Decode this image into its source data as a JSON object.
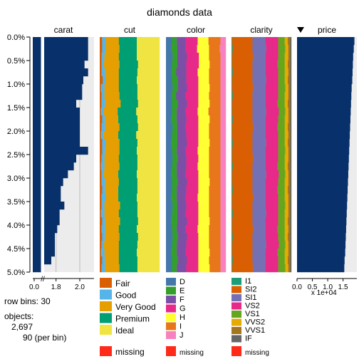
{
  "chart_data": {
    "type": "tableplot",
    "title": "diamonds data",
    "row_bins": 30,
    "objects": 2697,
    "objects_display": "2,697",
    "per_bin": 90,
    "sort_column": "price",
    "y_axis": {
      "ticks": [
        "0.0%",
        "0.5%",
        "1.0%",
        "1.5%",
        "2.0%",
        "2.5%",
        "3.0%",
        "3.5%",
        "4.0%",
        "4.5%",
        "5.0%"
      ],
      "range": [
        0,
        5
      ]
    },
    "columns": [
      {
        "name": "carat",
        "type": "numeric_broken_axis",
        "axis_ticks": [
          "0.0",
          "1.8",
          "2.0"
        ],
        "values": [
          2.07,
          2.07,
          2.07,
          2.04,
          2.07,
          2.03,
          2.02,
          2.02,
          1.97,
          2.0,
          2.0,
          2.0,
          2.0,
          2.0,
          2.07,
          1.97,
          1.95,
          1.9,
          1.86,
          1.84,
          1.84,
          1.87,
          1.83,
          1.83,
          1.81,
          1.79,
          1.79,
          1.79,
          1.76,
          1.7
        ],
        "bar_color": "#08306B"
      },
      {
        "name": "cut",
        "type": "categorical",
        "categories": [
          "Fair",
          "Good",
          "Very Good",
          "Premium",
          "Ideal"
        ],
        "colors": [
          "#D95F02",
          "#56B4E9",
          "#E69F00",
          "#009E73",
          "#F0E442"
        ],
        "proportions": [
          [
            0.04,
            0.06,
            0.22,
            0.3,
            0.38
          ],
          [
            0.04,
            0.06,
            0.23,
            0.29,
            0.38
          ],
          [
            0.03,
            0.05,
            0.24,
            0.3,
            0.38
          ],
          [
            0.03,
            0.04,
            0.26,
            0.31,
            0.36
          ],
          [
            0.03,
            0.06,
            0.23,
            0.31,
            0.37
          ],
          [
            0.05,
            0.05,
            0.22,
            0.3,
            0.38
          ],
          [
            0.02,
            0.06,
            0.24,
            0.31,
            0.37
          ],
          [
            0.03,
            0.05,
            0.25,
            0.3,
            0.37
          ],
          [
            0.03,
            0.06,
            0.26,
            0.29,
            0.36
          ],
          [
            0.02,
            0.05,
            0.23,
            0.31,
            0.39
          ],
          [
            0.04,
            0.05,
            0.22,
            0.32,
            0.37
          ],
          [
            0.03,
            0.06,
            0.24,
            0.31,
            0.36
          ],
          [
            0.02,
            0.04,
            0.25,
            0.3,
            0.39
          ],
          [
            0.04,
            0.06,
            0.23,
            0.3,
            0.37
          ],
          [
            0.04,
            0.05,
            0.24,
            0.29,
            0.38
          ],
          [
            0.03,
            0.05,
            0.24,
            0.31,
            0.37
          ],
          [
            0.02,
            0.06,
            0.25,
            0.3,
            0.37
          ],
          [
            0.03,
            0.04,
            0.24,
            0.31,
            0.38
          ],
          [
            0.03,
            0.06,
            0.23,
            0.31,
            0.37
          ],
          [
            0.04,
            0.05,
            0.22,
            0.32,
            0.37
          ],
          [
            0.03,
            0.07,
            0.21,
            0.31,
            0.38
          ],
          [
            0.03,
            0.05,
            0.26,
            0.29,
            0.37
          ],
          [
            0.02,
            0.06,
            0.24,
            0.31,
            0.37
          ],
          [
            0.04,
            0.05,
            0.25,
            0.3,
            0.36
          ],
          [
            0.03,
            0.06,
            0.23,
            0.3,
            0.38
          ],
          [
            0.04,
            0.05,
            0.24,
            0.31,
            0.36
          ],
          [
            0.03,
            0.04,
            0.25,
            0.31,
            0.37
          ],
          [
            0.02,
            0.06,
            0.24,
            0.3,
            0.38
          ],
          [
            0.04,
            0.05,
            0.23,
            0.31,
            0.37
          ],
          [
            0.03,
            0.06,
            0.24,
            0.3,
            0.37
          ]
        ]
      },
      {
        "name": "color",
        "type": "categorical",
        "categories": [
          "D",
          "E",
          "F",
          "G",
          "H",
          "I",
          "J"
        ],
        "colors": [
          "#4477AA",
          "#33A02C",
          "#7B4FA6",
          "#E7298A",
          "#FFFF33",
          "#E8761A",
          "#F781BF"
        ],
        "proportions": [
          [
            0.1,
            0.08,
            0.15,
            0.2,
            0.18,
            0.2,
            0.09
          ],
          [
            0.09,
            0.1,
            0.14,
            0.19,
            0.2,
            0.18,
            0.1
          ],
          [
            0.11,
            0.08,
            0.16,
            0.2,
            0.17,
            0.19,
            0.09
          ],
          [
            0.1,
            0.09,
            0.15,
            0.21,
            0.18,
            0.18,
            0.09
          ],
          [
            0.09,
            0.08,
            0.17,
            0.19,
            0.19,
            0.19,
            0.09
          ],
          [
            0.1,
            0.1,
            0.14,
            0.2,
            0.18,
            0.19,
            0.09
          ],
          [
            0.11,
            0.09,
            0.15,
            0.19,
            0.19,
            0.18,
            0.09
          ],
          [
            0.09,
            0.08,
            0.16,
            0.21,
            0.18,
            0.19,
            0.09
          ],
          [
            0.1,
            0.1,
            0.15,
            0.19,
            0.19,
            0.18,
            0.09
          ],
          [
            0.1,
            0.08,
            0.15,
            0.2,
            0.18,
            0.2,
            0.09
          ],
          [
            0.09,
            0.09,
            0.16,
            0.2,
            0.19,
            0.18,
            0.09
          ],
          [
            0.11,
            0.08,
            0.14,
            0.21,
            0.18,
            0.19,
            0.09
          ],
          [
            0.1,
            0.09,
            0.15,
            0.2,
            0.18,
            0.19,
            0.09
          ],
          [
            0.09,
            0.1,
            0.16,
            0.19,
            0.19,
            0.18,
            0.09
          ],
          [
            0.1,
            0.08,
            0.15,
            0.2,
            0.19,
            0.19,
            0.09
          ],
          [
            0.11,
            0.09,
            0.14,
            0.2,
            0.18,
            0.19,
            0.09
          ],
          [
            0.1,
            0.08,
            0.16,
            0.19,
            0.19,
            0.19,
            0.09
          ],
          [
            0.09,
            0.09,
            0.15,
            0.21,
            0.18,
            0.19,
            0.09
          ],
          [
            0.1,
            0.1,
            0.15,
            0.19,
            0.19,
            0.18,
            0.09
          ],
          [
            0.1,
            0.08,
            0.16,
            0.2,
            0.18,
            0.19,
            0.09
          ],
          [
            0.09,
            0.09,
            0.15,
            0.2,
            0.19,
            0.19,
            0.09
          ],
          [
            0.11,
            0.08,
            0.15,
            0.2,
            0.18,
            0.19,
            0.09
          ],
          [
            0.1,
            0.09,
            0.14,
            0.21,
            0.18,
            0.19,
            0.09
          ],
          [
            0.09,
            0.1,
            0.16,
            0.19,
            0.19,
            0.18,
            0.09
          ],
          [
            0.1,
            0.08,
            0.15,
            0.2,
            0.19,
            0.19,
            0.09
          ],
          [
            0.11,
            0.09,
            0.15,
            0.19,
            0.18,
            0.19,
            0.09
          ],
          [
            0.1,
            0.08,
            0.16,
            0.2,
            0.18,
            0.19,
            0.09
          ],
          [
            0.09,
            0.09,
            0.15,
            0.21,
            0.19,
            0.18,
            0.09
          ],
          [
            0.1,
            0.1,
            0.15,
            0.19,
            0.18,
            0.19,
            0.09
          ],
          [
            0.1,
            0.08,
            0.16,
            0.2,
            0.19,
            0.18,
            0.09
          ]
        ]
      },
      {
        "name": "clarity",
        "type": "categorical",
        "categories": [
          "I1",
          "SI2",
          "SI1",
          "VS2",
          "VS1",
          "VVS2",
          "VVS1",
          "IF"
        ],
        "colors": [
          "#1B9E77",
          "#D95F02",
          "#7570B3",
          "#E7298A",
          "#66A61E",
          "#E6AB02",
          "#A6761D",
          "#666666"
        ],
        "proportions": [
          [
            0.01,
            0.34,
            0.22,
            0.21,
            0.11,
            0.05,
            0.04,
            0.02
          ],
          [
            0.02,
            0.33,
            0.23,
            0.2,
            0.12,
            0.05,
            0.03,
            0.02
          ],
          [
            0.01,
            0.35,
            0.21,
            0.21,
            0.11,
            0.06,
            0.03,
            0.02
          ],
          [
            0.01,
            0.34,
            0.22,
            0.2,
            0.12,
            0.05,
            0.04,
            0.02
          ],
          [
            0.02,
            0.33,
            0.22,
            0.21,
            0.11,
            0.06,
            0.03,
            0.02
          ],
          [
            0.01,
            0.34,
            0.23,
            0.2,
            0.11,
            0.05,
            0.04,
            0.02
          ],
          [
            0.01,
            0.35,
            0.21,
            0.21,
            0.12,
            0.05,
            0.03,
            0.02
          ],
          [
            0.02,
            0.33,
            0.22,
            0.21,
            0.11,
            0.06,
            0.03,
            0.02
          ],
          [
            0.01,
            0.34,
            0.22,
            0.2,
            0.12,
            0.05,
            0.04,
            0.02
          ],
          [
            0.01,
            0.34,
            0.23,
            0.21,
            0.11,
            0.05,
            0.03,
            0.02
          ],
          [
            0.02,
            0.33,
            0.22,
            0.21,
            0.11,
            0.06,
            0.03,
            0.02
          ],
          [
            0.01,
            0.35,
            0.21,
            0.2,
            0.12,
            0.05,
            0.04,
            0.02
          ],
          [
            0.01,
            0.34,
            0.22,
            0.21,
            0.11,
            0.06,
            0.03,
            0.02
          ],
          [
            0.02,
            0.33,
            0.23,
            0.2,
            0.11,
            0.05,
            0.04,
            0.02
          ],
          [
            0.01,
            0.34,
            0.22,
            0.21,
            0.12,
            0.05,
            0.03,
            0.02
          ],
          [
            0.01,
            0.35,
            0.21,
            0.21,
            0.11,
            0.06,
            0.03,
            0.02
          ],
          [
            0.02,
            0.33,
            0.22,
            0.2,
            0.12,
            0.05,
            0.04,
            0.02
          ],
          [
            0.01,
            0.34,
            0.23,
            0.21,
            0.11,
            0.05,
            0.03,
            0.02
          ],
          [
            0.01,
            0.34,
            0.22,
            0.21,
            0.11,
            0.06,
            0.03,
            0.02
          ],
          [
            0.02,
            0.33,
            0.22,
            0.2,
            0.12,
            0.05,
            0.04,
            0.02
          ],
          [
            0.01,
            0.35,
            0.21,
            0.21,
            0.11,
            0.06,
            0.03,
            0.02
          ],
          [
            0.01,
            0.34,
            0.22,
            0.21,
            0.12,
            0.05,
            0.03,
            0.02
          ],
          [
            0.02,
            0.33,
            0.23,
            0.2,
            0.11,
            0.06,
            0.03,
            0.02
          ],
          [
            0.01,
            0.34,
            0.22,
            0.21,
            0.11,
            0.05,
            0.04,
            0.02
          ],
          [
            0.01,
            0.35,
            0.21,
            0.2,
            0.12,
            0.06,
            0.03,
            0.02
          ],
          [
            0.02,
            0.33,
            0.22,
            0.21,
            0.11,
            0.05,
            0.04,
            0.02
          ],
          [
            0.01,
            0.34,
            0.23,
            0.21,
            0.11,
            0.05,
            0.03,
            0.02
          ],
          [
            0.01,
            0.34,
            0.22,
            0.2,
            0.12,
            0.06,
            0.03,
            0.02
          ],
          [
            0.02,
            0.33,
            0.22,
            0.21,
            0.11,
            0.05,
            0.04,
            0.02
          ],
          [
            0.01,
            0.35,
            0.21,
            0.21,
            0.12,
            0.05,
            0.03,
            0.02
          ]
        ]
      },
      {
        "name": "price",
        "type": "numeric",
        "axis_ticks": [
          "0.0",
          "0.5",
          "1.0",
          "1.5"
        ],
        "axis_range": [
          0,
          1.95
        ],
        "axis_multiplier": "x 1e+04",
        "values": [
          1.87,
          1.85,
          1.83,
          1.82,
          1.81,
          1.8,
          1.78,
          1.77,
          1.76,
          1.75,
          1.74,
          1.73,
          1.72,
          1.71,
          1.7,
          1.69,
          1.68,
          1.67,
          1.66,
          1.65,
          1.64,
          1.63,
          1.62,
          1.61,
          1.6,
          1.59,
          1.58,
          1.57,
          1.55,
          1.54
        ],
        "bar_color": "#08306B"
      }
    ],
    "legend": {
      "cut": [
        "Fair",
        "Good",
        "Very Good",
        "Premium",
        "Ideal"
      ],
      "color": [
        "D",
        "E",
        "F",
        "G",
        "H",
        "I",
        "J"
      ],
      "clarity": [
        "I1",
        "SI2",
        "SI1",
        "VS2",
        "VS1",
        "VVS2",
        "VVS1",
        "IF"
      ],
      "missing_label": "missing",
      "missing_color": "#FF2A1A"
    }
  },
  "info": {
    "row_bins_text": "row bins: 30",
    "objects_label": "objects:",
    "objects_value": "2,697",
    "per_bin_text": "90 (per bin)"
  }
}
